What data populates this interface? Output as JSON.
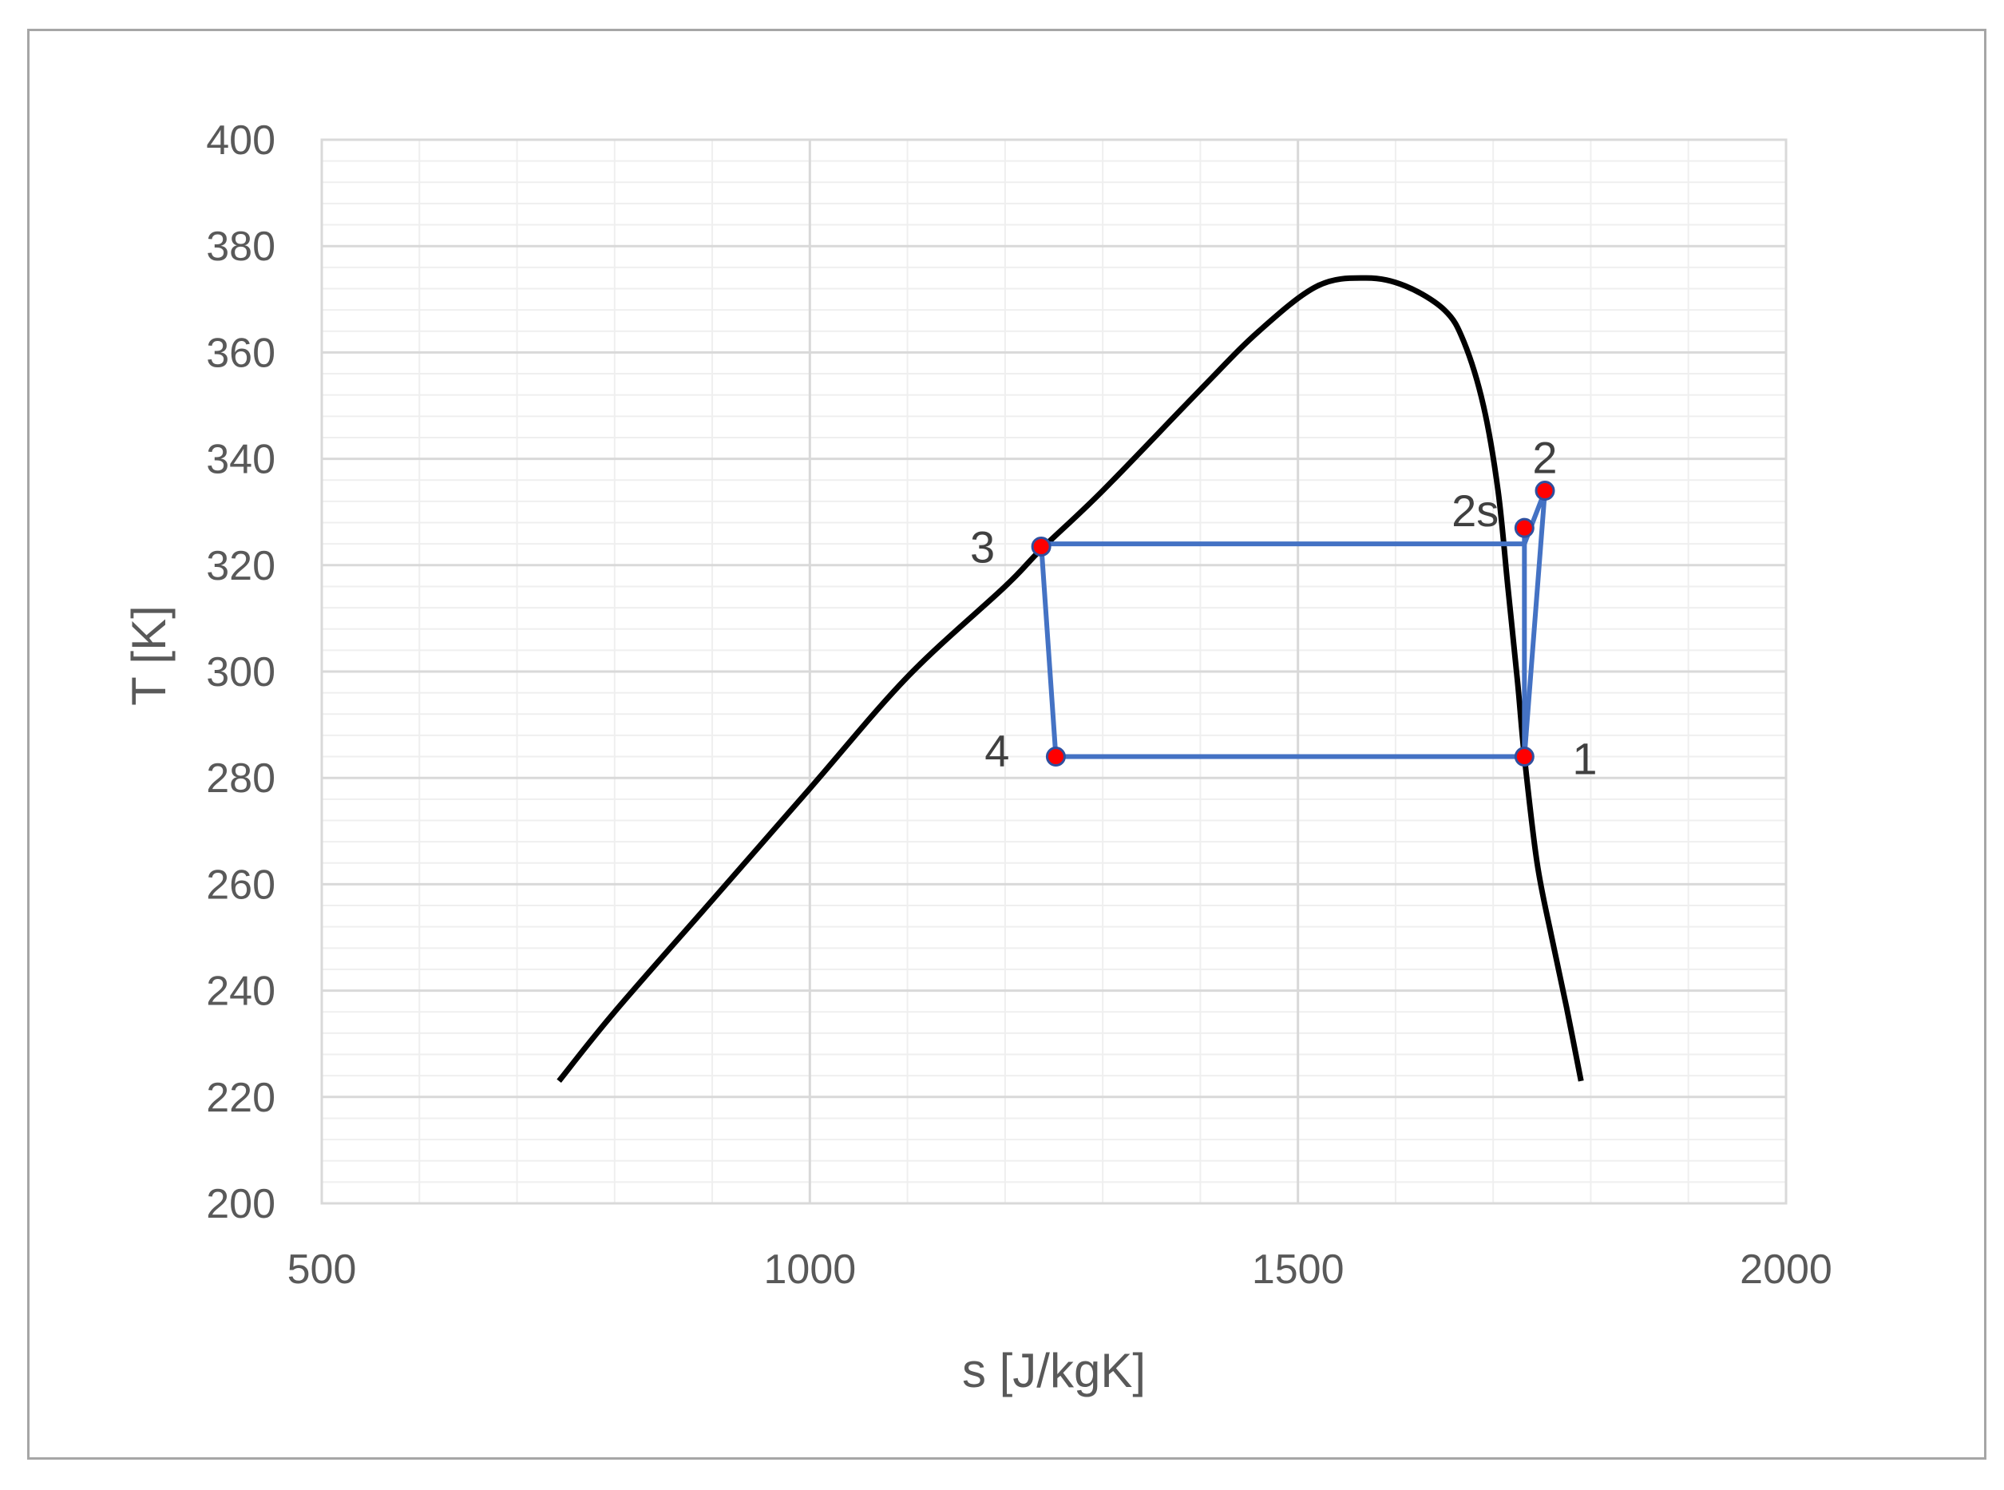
{
  "chart_data": {
    "type": "scatter",
    "title": "",
    "xlabel": "s [J/kgK]",
    "ylabel": "T [K]",
    "xlim": [
      500,
      2000
    ],
    "ylim": [
      200,
      400
    ],
    "x_ticks": [
      500,
      1000,
      1500,
      2000
    ],
    "y_ticks": [
      200,
      220,
      240,
      260,
      280,
      300,
      320,
      340,
      360,
      380,
      400
    ],
    "grid": true,
    "legend": "none",
    "colors": {
      "dome": "#000000",
      "cycle": "#4472c4",
      "point_fill": "#ff0000",
      "point_stroke": "#2f4f9f",
      "major_grid": "#d9d9d9",
      "minor_grid": "#efefef"
    },
    "saturation_dome": {
      "x": [
        743,
        800,
        900,
        1000,
        1100,
        1200,
        1237,
        1300,
        1400,
        1460,
        1520,
        1570,
        1610,
        1650,
        1670,
        1690,
        1705,
        1715,
        1725,
        1732,
        1745,
        1760,
        1775,
        1790
      ],
      "y": [
        223,
        236,
        257,
        278,
        299,
        316,
        323,
        334,
        353,
        364,
        372.5,
        374,
        372.5,
        368,
        362,
        350,
        334,
        316,
        298,
        284,
        264,
        250,
        237,
        223
      ]
    },
    "cycle": {
      "x": [
        1732,
        1753,
        1732,
        1237,
        1252,
        1732
      ],
      "y": [
        284,
        334,
        324,
        324,
        284,
        284
      ]
    },
    "isentropic": {
      "x": [
        1732,
        1732
      ],
      "y": [
        284,
        327
      ]
    },
    "points": [
      {
        "label": "1",
        "s": 1732,
        "T": 284
      },
      {
        "label": "2",
        "s": 1753,
        "T": 334
      },
      {
        "label": "2s",
        "s": 1732,
        "T": 327
      },
      {
        "label": "3",
        "s": 1237,
        "T": 323.5
      },
      {
        "label": "4",
        "s": 1252,
        "T": 284
      }
    ]
  }
}
